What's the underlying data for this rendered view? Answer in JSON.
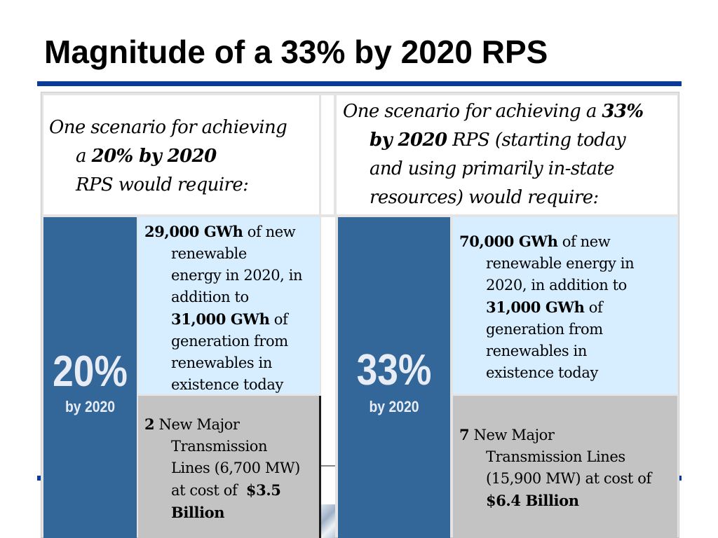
{
  "title": "Magnitude of a 33% by 2020 RPS",
  "colors": {
    "rule": "#0a3a9a",
    "pct_block": "#336699",
    "blue_cell": "#d6eeff",
    "gray_cell": "#c3c3c3"
  },
  "left": {
    "header": {
      "l1": "One scenario for achieving",
      "l2_pre": "a ",
      "l2_bold": "20% by 2020",
      "l3": "RPS would require:"
    },
    "pct": "20%",
    "pct_sub": "by 2020",
    "energy": {
      "l1_bold": "29,000 GWh",
      "l1": " of new",
      "l2": "renewable",
      "l3": "energy in 2020, in",
      "l4": "addition to",
      "l5_bold": "31,000 GWh",
      "l5": " of",
      "l6": "generation from",
      "l7": "renewables in",
      "l8": "existence today"
    },
    "transmission": {
      "l1_bold": "2",
      "l1": " New Major",
      "l2": "Transmission",
      "l3": "Lines (6,700 MW)",
      "l4": "at cost of  ",
      "l4_bold": "$3.5",
      "l5_bold": "Billion"
    }
  },
  "right": {
    "header": {
      "l1": "One scenario for achieving a ",
      "l1_bold": "33%",
      "l2_bold": "by 2020",
      "l2": " RPS (starting today",
      "l3": "and using primarily in-state",
      "l4": "resources) would require:"
    },
    "pct": "33%",
    "pct_sub": "by 2020",
    "energy": {
      "l1_bold": "70,000 GWh",
      "l1": " of new",
      "l2": "renewable energy in",
      "l3": "2020, in addition to",
      "l4_bold": "31,000 GWh",
      "l4": " of",
      "l5": "generation from",
      "l6": "renewables in",
      "l7": "existence today"
    },
    "transmission": {
      "l1_bold": "7",
      "l1": " New Major",
      "l2": "Transmission Lines",
      "l3": "(15,900 MW) at cost of",
      "l4_bold": "$6.4 Billion"
    }
  }
}
